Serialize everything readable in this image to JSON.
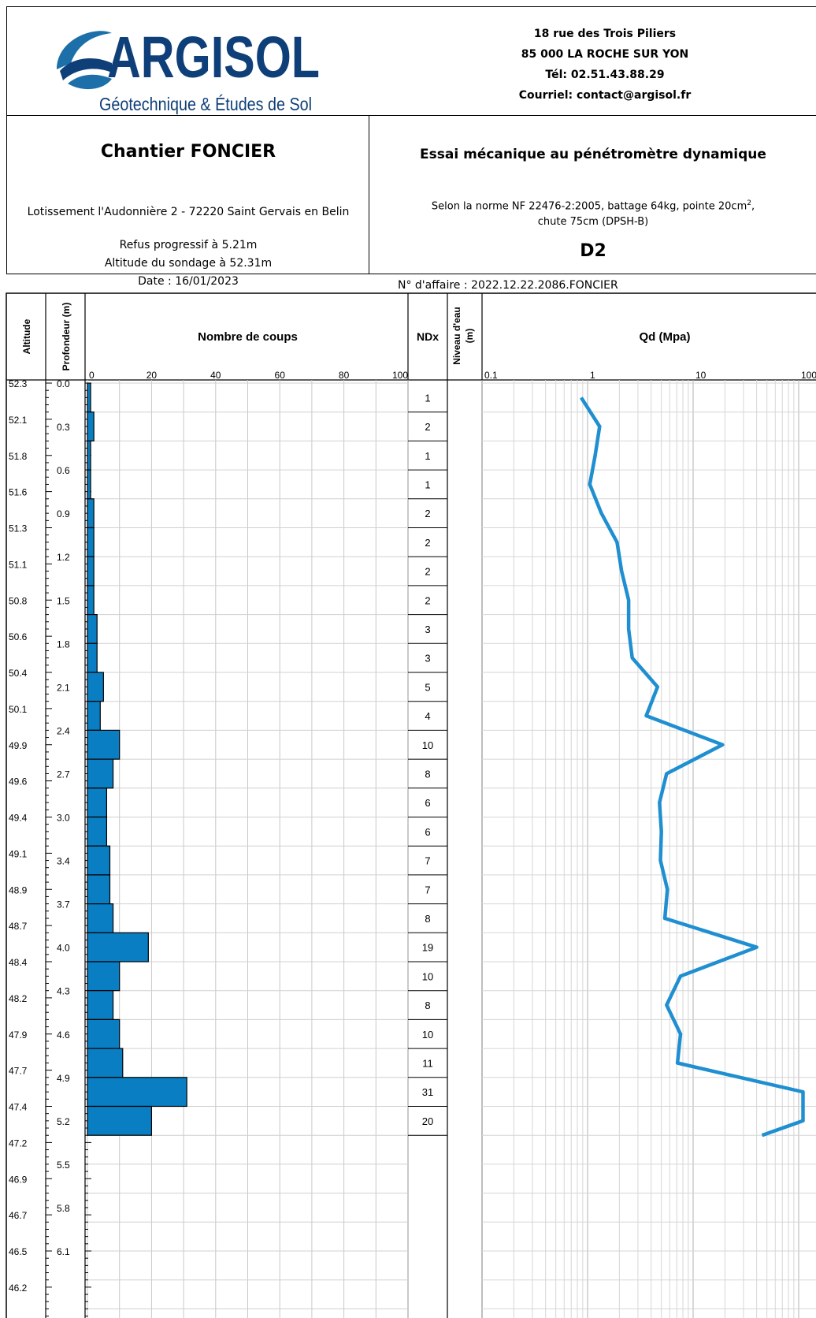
{
  "header": {
    "logo_name": "ARGISOL",
    "logo_tagline": "Géotechnique & Études de Sol",
    "address_lines": [
      "18 rue des Trois Piliers",
      "85 000 LA ROCHE SUR YON",
      "Tél: 02.51.43.88.29",
      "Courriel: contact@argisol.fr"
    ]
  },
  "site": {
    "title": "Chantier FONCIER",
    "location": "Lotissement l'Audonnière 2 - 72220 Saint Gervais en Belin",
    "refusal": "Refus progressif à 5.21m",
    "altitude": "Altitude du sondage à 52.31m",
    "date": "Date :  16/01/2023"
  },
  "test": {
    "title": "Essai mécanique au pénétromètre dynamique",
    "norm_line1": "Selon la norme NF 22476-2:2005, battage 64kg, pointe 20cm",
    "norm_sup": "2",
    "norm_line1_end": ",",
    "norm_line2": "chute 75cm (DPSH-B)",
    "sounding_id": "D2",
    "affaire": "N° d'affaire : 2022.12.22.2086.FONCIER"
  },
  "columns": {
    "altitude": "Altitude",
    "depth": "Profondeur (m)",
    "blows": "Nombre de coups",
    "ndx": "NDx",
    "water_line1": "Niveau d'eau",
    "water_line2": "(m)",
    "qd": "Qd (Mpa)"
  },
  "chart_data": {
    "type": "bar",
    "depth_range": [
      0.0,
      6.25
    ],
    "altitude_ticks": [
      "52.3",
      "52.1",
      "51.8",
      "51.6",
      "51.3",
      "51.1",
      "50.8",
      "50.6",
      "50.4",
      "50.1",
      "49.9",
      "49.6",
      "49.4",
      "49.1",
      "48.9",
      "48.7",
      "48.4",
      "48.2",
      "47.9",
      "47.7",
      "47.4",
      "47.2",
      "46.9",
      "46.7",
      "46.5",
      "46.2"
    ],
    "depth_ticks": [
      "0.0",
      "0.3",
      "0.6",
      "0.9",
      "1.2",
      "1.5",
      "1.8",
      "2.1",
      "2.4",
      "2.7",
      "3.0",
      "3.4",
      "3.7",
      "4.0",
      "4.3",
      "4.6",
      "4.9",
      "5.2",
      "5.5",
      "5.8",
      "6.1"
    ],
    "blows_axis": {
      "xlim": [
        0,
        100
      ],
      "ticks": [
        "0",
        "20",
        "40",
        "60",
        "80",
        "100"
      ]
    },
    "blows": [
      1,
      2,
      1,
      1,
      2,
      2,
      2,
      2,
      3,
      3,
      5,
      4,
      10,
      8,
      6,
      6,
      7,
      7,
      8,
      19,
      10,
      8,
      10,
      11,
      31,
      20
    ],
    "ndx": [
      "1",
      "2",
      "1",
      "1",
      "2",
      "2",
      "2",
      "2",
      "3",
      "3",
      "5",
      "4",
      "10",
      "8",
      "6",
      "6",
      "7",
      "7",
      "8",
      "19",
      "10",
      "8",
      "10",
      "11",
      "31",
      "20"
    ],
    "qd_axis": {
      "scale": "log",
      "xlim": [
        0.1,
        100
      ],
      "ticks": [
        "0.1",
        "1",
        "10",
        "100"
      ]
    },
    "qd_series": {
      "depth": [
        0.1,
        0.3,
        0.5,
        0.7,
        0.9,
        1.1,
        1.3,
        1.5,
        1.7,
        1.9,
        2.1,
        2.3,
        2.5,
        2.7,
        2.9,
        3.1,
        3.3,
        3.5,
        3.7,
        3.9,
        4.1,
        4.3,
        4.5,
        4.7,
        4.9,
        5.1,
        5.2
      ],
      "qd": [
        0.87,
        1.3,
        1.18,
        1.05,
        1.35,
        1.9,
        2.1,
        2.45,
        2.45,
        2.65,
        4.6,
        3.6,
        19.0,
        5.6,
        4.8,
        5.0,
        4.9,
        5.7,
        5.4,
        40.0,
        7.6,
        5.6,
        7.6,
        7.1,
        110.0,
        110.0,
        45.0
      ]
    },
    "bar_color": "#0a7ec2",
    "line_color": "#1f8fd1"
  }
}
